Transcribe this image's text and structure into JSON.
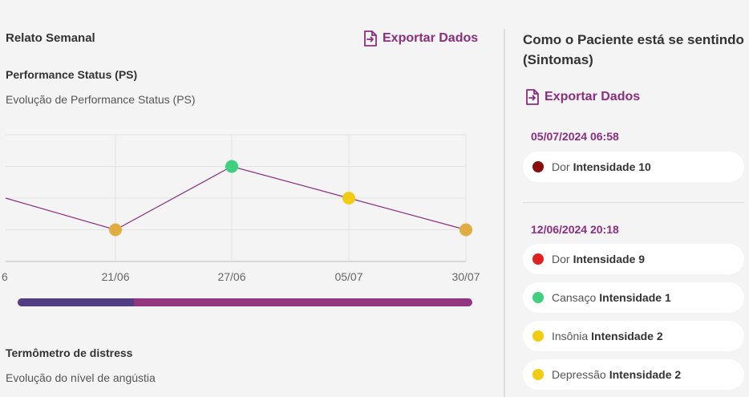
{
  "left": {
    "title": "Relato Semanal",
    "export_label": "Exportar Dados",
    "ps": {
      "title": "Performance Status (PS)",
      "description": "Evolução de Performance Status (PS)"
    },
    "distress": {
      "title": "Termômetro de distress",
      "description": "Evolução do nível de angústia"
    },
    "scroll": {
      "position_fraction": 0.255
    }
  },
  "chart_data": {
    "type": "line",
    "x": [
      "6",
      "21/06",
      "27/06",
      "05/07",
      "30/07"
    ],
    "series": [
      {
        "values": [
          2,
          1,
          3,
          2,
          1
        ],
        "point_colors": [
          null,
          "#e0ad43",
          "#3ecf7f",
          "#f2cc12",
          "#e0ad43"
        ]
      }
    ],
    "ylim": [
      0,
      4
    ],
    "grid": true,
    "line_color": "#8b2d80"
  },
  "right": {
    "title": "Como o Paciente está se sentindo (Sintomas)",
    "export_label": "Exportar Dados",
    "groups": [
      {
        "date": "05/07/2024 06:58",
        "items": [
          {
            "name": "Dor",
            "intensity": "Intensidade 10",
            "color": "#8b0a0a"
          }
        ]
      },
      {
        "date": "12/06/2024 20:18",
        "items": [
          {
            "name": "Dor",
            "intensity": "Intensidade 9",
            "color": "#e02020"
          },
          {
            "name": "Cansaço",
            "intensity": "Intensidade 1",
            "color": "#3ecf7f"
          },
          {
            "name": "Insônia",
            "intensity": "Intensidade 2",
            "color": "#f2cc12"
          },
          {
            "name": "Depressão",
            "intensity": "Intensidade 2",
            "color": "#f2cc12"
          }
        ]
      }
    ]
  }
}
